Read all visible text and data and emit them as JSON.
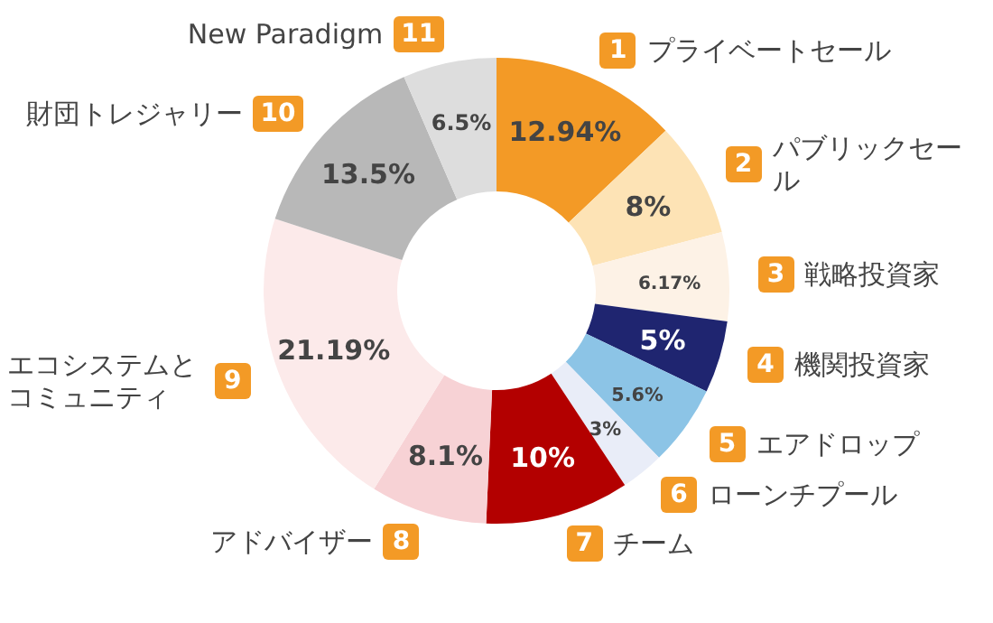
{
  "chart_data": {
    "type": "donut",
    "categories": [
      "プライベートセール",
      "パブリックセール",
      "戦略投資家",
      "機関投資家",
      "エアドロップ",
      "ローンチプール",
      "チーム",
      "アドバイザー",
      "エコシステムとコミュニティ",
      "財団トレジャリー",
      "New Paradigm"
    ],
    "values": [
      12.94,
      8,
      6.17,
      5,
      5.6,
      3,
      10,
      8.1,
      21.19,
      13.5,
      6.5
    ],
    "colors": [
      "#f39a26",
      "#fde3b5",
      "#fdf2e6",
      "#1f2570",
      "#8cc4e6",
      "#e9edf8",
      "#b30000",
      "#f7d2d5",
      "#fceaea",
      "#b8b8b8",
      "#dddddd"
    ],
    "value_labels": [
      "12.94%",
      "8%",
      "6.17%",
      "5%",
      "5.6%",
      "3%",
      "10%",
      "8.1%",
      "21.19%",
      "13.5%",
      "6.5%"
    ],
    "annotations": [
      "1",
      "2",
      "3",
      "4",
      "5",
      "6",
      "7",
      "8",
      "9",
      "10",
      "11"
    ]
  }
}
